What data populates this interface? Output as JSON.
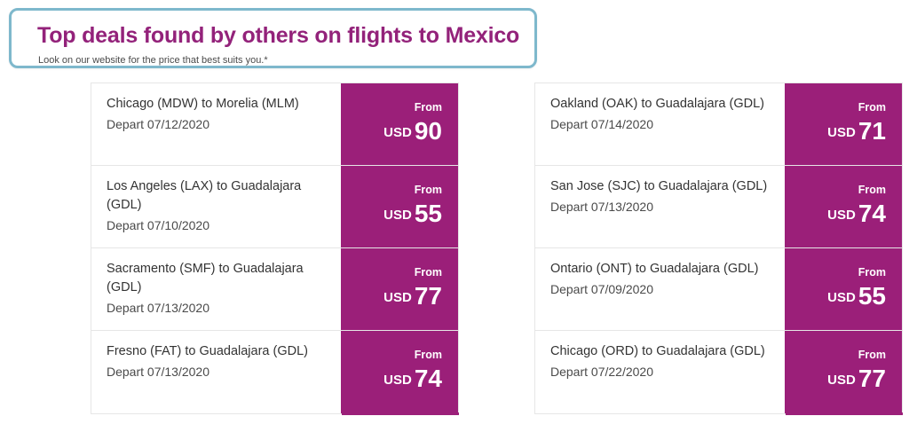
{
  "header": {
    "title": "Top deals found by others on flights to Mexico",
    "subtitle": "Look on our website for the price that best suits you.*"
  },
  "deals_left": [
    {
      "route": "Chicago (MDW) to Morelia (MLM)",
      "depart": "Depart 07/12/2020",
      "from": "From",
      "currency": "USD",
      "price": "90"
    },
    {
      "route": "Los Angeles (LAX) to Guadalajara (GDL)",
      "depart": "Depart 07/10/2020",
      "from": "From",
      "currency": "USD",
      "price": "55"
    },
    {
      "route": "Sacramento (SMF) to Guadalajara (GDL)",
      "depart": "Depart 07/13/2020",
      "from": "From",
      "currency": "USD",
      "price": "77"
    },
    {
      "route": "Fresno (FAT) to Guadalajara (GDL)",
      "depart": "Depart 07/13/2020",
      "from": "From",
      "currency": "USD",
      "price": "74"
    }
  ],
  "deals_right": [
    {
      "route": "Oakland (OAK) to Guadalajara (GDL)",
      "depart": "Depart 07/14/2020",
      "from": "From",
      "currency": "USD",
      "price": "71"
    },
    {
      "route": "San Jose (SJC) to Guadalajara (GDL)",
      "depart": "Depart 07/13/2020",
      "from": "From",
      "currency": "USD",
      "price": "74"
    },
    {
      "route": "Ontario (ONT) to Guadalajara (GDL)",
      "depart": "Depart 07/09/2020",
      "from": "From",
      "currency": "USD",
      "price": "55"
    },
    {
      "route": "Chicago (ORD) to Guadalajara (GDL)",
      "depart": "Depart 07/22/2020",
      "from": "From",
      "currency": "USD",
      "price": "77"
    }
  ],
  "colors": {
    "brand_purple": "#9b1f79",
    "title_purple": "#93227a",
    "highlight_border": "#7eb8cc"
  }
}
